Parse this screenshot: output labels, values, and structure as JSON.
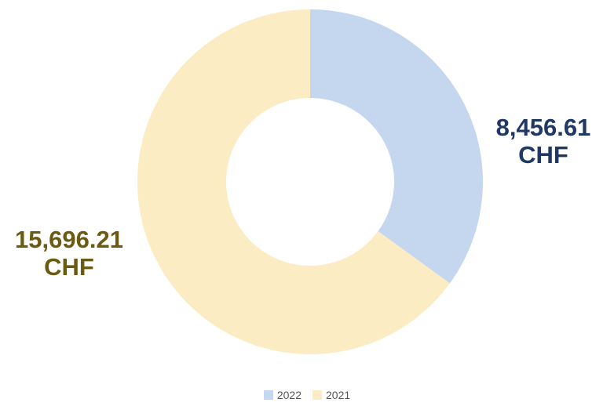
{
  "chart_data": {
    "type": "pie",
    "categories": [
      "2022",
      "2021"
    ],
    "values": [
      8456.61,
      15696.21
    ],
    "value_labels": [
      "8,456.61 CHF",
      "15,696.21 CHF"
    ],
    "colors": [
      "#c5d7ef",
      "#fbecc3"
    ],
    "label_colors": [
      "#1f3864",
      "#6b5a12"
    ],
    "donut": true,
    "legend": "bottom"
  }
}
